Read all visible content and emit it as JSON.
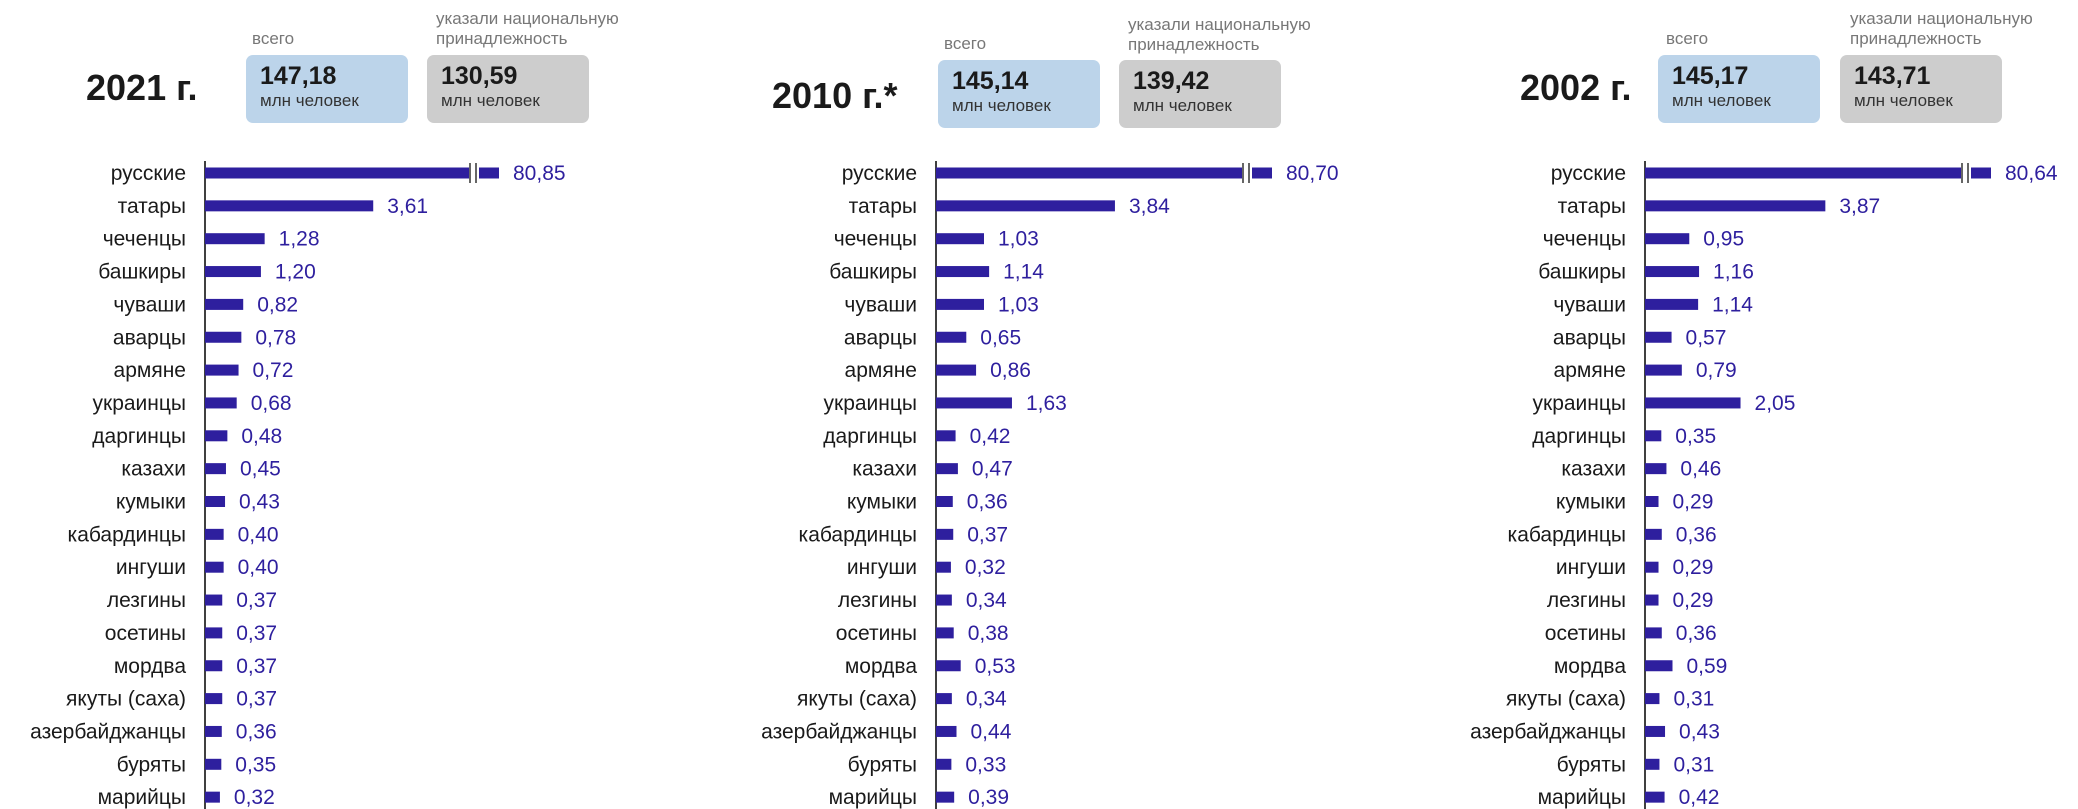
{
  "chart_data": [
    {
      "type": "bar",
      "title": "2021 г.",
      "summary": {
        "total_label": "всего",
        "total_value": "147,18",
        "total_unit": "млн человек",
        "indicated_label": "указали национальную принадлежность",
        "indicated_value": "130,59",
        "indicated_unit": "млн человек"
      },
      "categories": [
        "русские",
        "татары",
        "чеченцы",
        "башкиры",
        "чуваши",
        "аварцы",
        "армяне",
        "украинцы",
        "даргинцы",
        "казахи",
        "кумыки",
        "кабардинцы",
        "ингуши",
        "лезгины",
        "осетины",
        "мордва",
        "якуты (саха)",
        "азербайджанцы",
        "буряты",
        "марийцы"
      ],
      "values": [
        80.85,
        3.61,
        1.28,
        1.2,
        0.82,
        0.78,
        0.72,
        0.68,
        0.48,
        0.45,
        0.43,
        0.4,
        0.4,
        0.37,
        0.37,
        0.37,
        0.37,
        0.36,
        0.35,
        0.32
      ],
      "value_labels": [
        "80,85",
        "3,61",
        "1,28",
        "1,20",
        "0,82",
        "0,78",
        "0,72",
        "0,68",
        "0,48",
        "0,45",
        "0,43",
        "0,40",
        "0,40",
        "0,37",
        "0,37",
        "0,37",
        "0,37",
        "0,36",
        "0,35",
        "0,32"
      ],
      "axis_break_on_first": true
    },
    {
      "type": "bar",
      "title": "2010 г.*",
      "summary": {
        "total_label": "всего",
        "total_value": "145,14",
        "total_unit": "млн человек",
        "indicated_label": "указали национальную принадлежность",
        "indicated_value": "139,42",
        "indicated_unit": "млн человек"
      },
      "categories": [
        "русские",
        "татары",
        "чеченцы",
        "башкиры",
        "чуваши",
        "аварцы",
        "армяне",
        "украинцы",
        "даргинцы",
        "казахи",
        "кумыки",
        "кабардинцы",
        "ингуши",
        "лезгины",
        "осетины",
        "мордва",
        "якуты (саха)",
        "азербайджанцы",
        "буряты",
        "марийцы"
      ],
      "values": [
        80.7,
        3.84,
        1.03,
        1.14,
        1.03,
        0.65,
        0.86,
        1.63,
        0.42,
        0.47,
        0.36,
        0.37,
        0.32,
        0.34,
        0.38,
        0.53,
        0.34,
        0.44,
        0.33,
        0.39
      ],
      "value_labels": [
        "80,70",
        "3,84",
        "1,03",
        "1,14",
        "1,03",
        "0,65",
        "0,86",
        "1,63",
        "0,42",
        "0,47",
        "0,36",
        "0,37",
        "0,32",
        "0,34",
        "0,38",
        "0,53",
        "0,34",
        "0,44",
        "0,33",
        "0,39"
      ],
      "axis_break_on_first": true
    },
    {
      "type": "bar",
      "title": "2002 г.",
      "summary": {
        "total_label": "всего",
        "total_value": "145,17",
        "total_unit": "млн человек",
        "indicated_label": "указали национальную принадлежность",
        "indicated_value": "143,71",
        "indicated_unit": "млн человек"
      },
      "categories": [
        "русские",
        "татары",
        "чеченцы",
        "башкиры",
        "чуваши",
        "аварцы",
        "армяне",
        "украинцы",
        "даргинцы",
        "казахи",
        "кумыки",
        "кабардинцы",
        "ингуши",
        "лезгины",
        "осетины",
        "мордва",
        "якуты (саха)",
        "азербайджанцы",
        "буряты",
        "марийцы"
      ],
      "values": [
        80.64,
        3.87,
        0.95,
        1.16,
        1.14,
        0.57,
        0.79,
        2.05,
        0.35,
        0.46,
        0.29,
        0.36,
        0.29,
        0.29,
        0.36,
        0.59,
        0.31,
        0.43,
        0.31,
        0.42
      ],
      "value_labels": [
        "80,64",
        "3,87",
        "0,95",
        "1,16",
        "1,14",
        "0,57",
        "0,79",
        "2,05",
        "0,35",
        "0,46",
        "0,29",
        "0,36",
        "0,29",
        "0,29",
        "0,36",
        "0,59",
        "0,31",
        "0,43",
        "0,31",
        "0,42"
      ],
      "axis_break_on_first": true
    }
  ],
  "colors": {
    "bar": "#2e1f9e",
    "value_label": "#2e1f9e",
    "category_label": "#1a1a1a",
    "axis": "#000000",
    "total_box": "#bcd4ea",
    "indicated_box": "#cdcdcd"
  }
}
